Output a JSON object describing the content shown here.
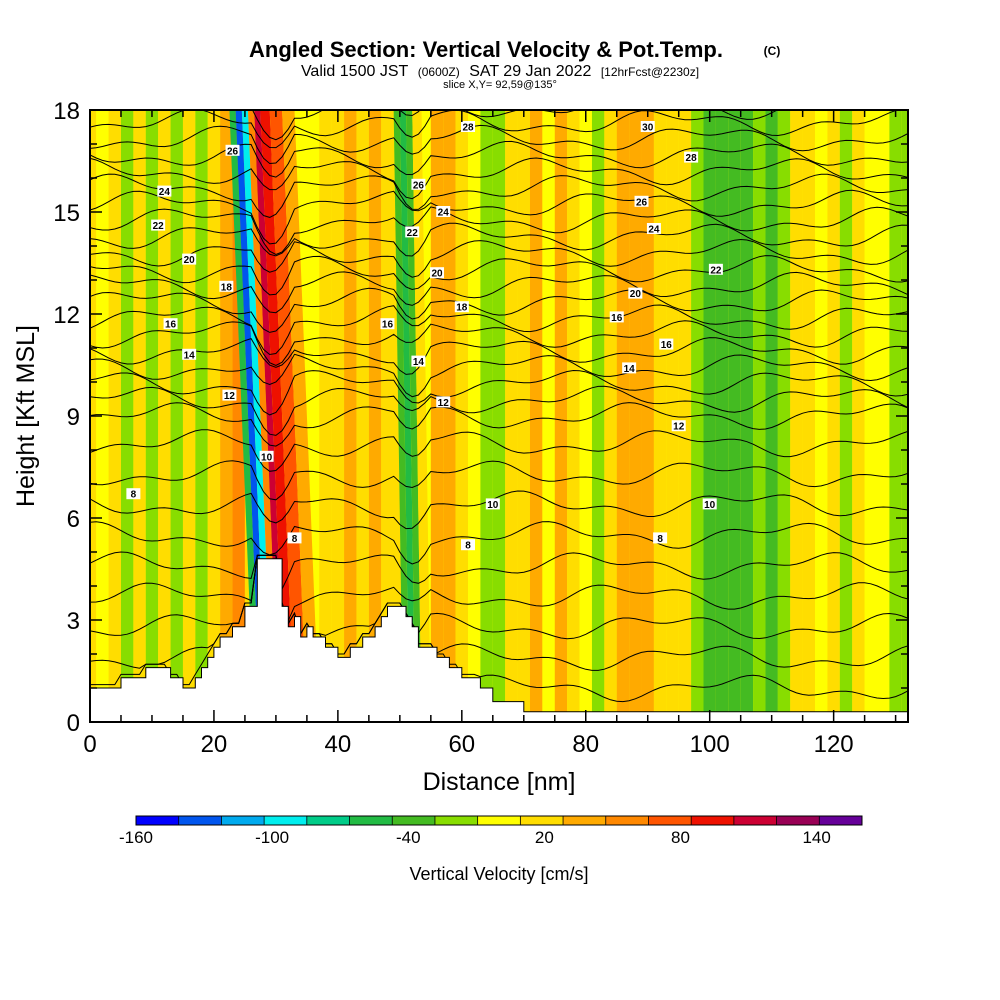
{
  "chart_data": {
    "type": "heatmap",
    "title": "Angled Section: Vertical Velocity & Pot.Temp.",
    "title_unit": "(C)",
    "subtitle": {
      "prefix": "Valid 1500 JST",
      "utc": "(0600Z)",
      "date": "SAT 29 Jan 2022",
      "fcst": "[12hrFcst@2230z]"
    },
    "slice_label": "slice X,Y= 92,59@135°",
    "xlabel": "Distance [nm]",
    "ylabel": "Height [Kft MSL]",
    "xlim": [
      0,
      132
    ],
    "ylim": [
      0,
      18
    ],
    "x_ticks": [
      0,
      20,
      40,
      60,
      80,
      100,
      120
    ],
    "y_ticks": [
      0,
      3,
      6,
      9,
      12,
      15,
      18
    ],
    "colorbar": {
      "label": "Vertical Velocity [cm/s]",
      "range": [
        -160,
        160
      ],
      "bins": 17,
      "tick_labels": [
        {
          "value": -160,
          "text": "-160"
        },
        {
          "value": -100,
          "text": "-100"
        },
        {
          "value": -40,
          "text": "-40"
        },
        {
          "value": 20,
          "text": "20"
        },
        {
          "value": 80,
          "text": "80"
        },
        {
          "value": 140,
          "text": "140"
        }
      ],
      "colors": [
        "#0000ff",
        "#0055ee",
        "#00aaee",
        "#00eeee",
        "#00cc88",
        "#22bb44",
        "#44bb22",
        "#88dd00",
        "#ffff00",
        "#ffdd00",
        "#ffaa00",
        "#ff8800",
        "#ff5500",
        "#ee1100",
        "#cc0033",
        "#990055",
        "#660099"
      ]
    },
    "terrain": [
      [
        0,
        1
      ],
      [
        5,
        1
      ],
      [
        5,
        1.3
      ],
      [
        9,
        1.3
      ],
      [
        9,
        1.6
      ],
      [
        13,
        1.6
      ],
      [
        13,
        1.3
      ],
      [
        15,
        1.3
      ],
      [
        15,
        1
      ],
      [
        17,
        1
      ],
      [
        17,
        1.3
      ],
      [
        18,
        1.3
      ],
      [
        18,
        1.6
      ],
      [
        19,
        1.6
      ],
      [
        19,
        1.9
      ],
      [
        20,
        1.9
      ],
      [
        20,
        2.2
      ],
      [
        21,
        2.2
      ],
      [
        21,
        2.5
      ],
      [
        23,
        2.5
      ],
      [
        23,
        2.8
      ],
      [
        25,
        2.8
      ],
      [
        25,
        3.4
      ],
      [
        27,
        3.4
      ],
      [
        27,
        4.8
      ],
      [
        31,
        4.8
      ],
      [
        31,
        3.4
      ],
      [
        32,
        3.4
      ],
      [
        32,
        2.8
      ],
      [
        33,
        2.8
      ],
      [
        33,
        3.1
      ],
      [
        34,
        3.1
      ],
      [
        34,
        2.5
      ],
      [
        35,
        2.5
      ],
      [
        35,
        2.8
      ],
      [
        36,
        2.8
      ],
      [
        36,
        2.5
      ],
      [
        38,
        2.5
      ],
      [
        38,
        2.2
      ],
      [
        40,
        2.2
      ],
      [
        40,
        1.9
      ],
      [
        42,
        1.9
      ],
      [
        42,
        2.2
      ],
      [
        44,
        2.2
      ],
      [
        44,
        2.5
      ],
      [
        46,
        2.5
      ],
      [
        46,
        2.8
      ],
      [
        47,
        2.8
      ],
      [
        47,
        3.1
      ],
      [
        48,
        3.1
      ],
      [
        48,
        3.4
      ],
      [
        51,
        3.4
      ],
      [
        51,
        3.1
      ],
      [
        52,
        3.1
      ],
      [
        52,
        2.8
      ],
      [
        53,
        2.8
      ],
      [
        53,
        2.2
      ],
      [
        56,
        2.2
      ],
      [
        56,
        1.9
      ],
      [
        58,
        1.9
      ],
      [
        58,
        1.6
      ],
      [
        60,
        1.6
      ],
      [
        60,
        1.3
      ],
      [
        63,
        1.3
      ],
      [
        63,
        1
      ],
      [
        65,
        1
      ],
      [
        65,
        0.6
      ],
      [
        70,
        0.6
      ],
      [
        70,
        0.3
      ],
      [
        132,
        0.3
      ]
    ],
    "velocity_field": [
      {
        "x": 0,
        "v": 20
      },
      {
        "x": 2,
        "v": 0
      },
      {
        "x": 4,
        "v": 10
      },
      {
        "x": 6,
        "v": -10
      },
      {
        "x": 8,
        "v": 20
      },
      {
        "x": 10,
        "v": -25
      },
      {
        "x": 12,
        "v": 25
      },
      {
        "x": 14,
        "v": -15
      },
      {
        "x": 16,
        "v": 10
      },
      {
        "x": 18,
        "v": -10
      },
      {
        "x": 20,
        "v": 20
      },
      {
        "x": 22,
        "v": 45
      },
      {
        "x": 24,
        "v": 55
      },
      {
        "x": 26,
        "v": 20
      },
      {
        "x": 27,
        "v": -60
      },
      {
        "x": 28,
        "v": -130
      },
      {
        "x": 29,
        "v": -90
      },
      {
        "x": 30,
        "v": 60
      },
      {
        "x": 31,
        "v": 110
      },
      {
        "x": 32,
        "v": 95
      },
      {
        "x": 34,
        "v": 70
      },
      {
        "x": 36,
        "v": 40
      },
      {
        "x": 38,
        "v": 20
      },
      {
        "x": 40,
        "v": 10
      },
      {
        "x": 42,
        "v": 30
      },
      {
        "x": 44,
        "v": 15
      },
      {
        "x": 46,
        "v": 35
      },
      {
        "x": 48,
        "v": 10
      },
      {
        "x": 50,
        "v": 25
      },
      {
        "x": 51,
        "v": -30
      },
      {
        "x": 52,
        "v": -60
      },
      {
        "x": 53,
        "v": -30
      },
      {
        "x": 54,
        "v": 20
      },
      {
        "x": 56,
        "v": 30
      },
      {
        "x": 58,
        "v": 45
      },
      {
        "x": 60,
        "v": 20
      },
      {
        "x": 62,
        "v": 0
      },
      {
        "x": 64,
        "v": -20
      },
      {
        "x": 66,
        "v": -10
      },
      {
        "x": 68,
        "v": 10
      },
      {
        "x": 70,
        "v": 20
      },
      {
        "x": 72,
        "v": 30
      },
      {
        "x": 74,
        "v": 5
      },
      {
        "x": 76,
        "v": 35
      },
      {
        "x": 78,
        "v": 15
      },
      {
        "x": 80,
        "v": 0
      },
      {
        "x": 82,
        "v": -10
      },
      {
        "x": 84,
        "v": 25
      },
      {
        "x": 86,
        "v": 40
      },
      {
        "x": 88,
        "v": 30
      },
      {
        "x": 90,
        "v": 45
      },
      {
        "x": 92,
        "v": 25
      },
      {
        "x": 94,
        "v": 10
      },
      {
        "x": 96,
        "v": 15
      },
      {
        "x": 98,
        "v": -10
      },
      {
        "x": 100,
        "v": -35
      },
      {
        "x": 102,
        "v": -45
      },
      {
        "x": 104,
        "v": -40
      },
      {
        "x": 106,
        "v": -35
      },
      {
        "x": 108,
        "v": -20
      },
      {
        "x": 110,
        "v": -30
      },
      {
        "x": 112,
        "v": -10
      },
      {
        "x": 114,
        "v": 10
      },
      {
        "x": 116,
        "v": 20
      },
      {
        "x": 118,
        "v": 0
      },
      {
        "x": 120,
        "v": 10
      },
      {
        "x": 122,
        "v": -10
      },
      {
        "x": 124,
        "v": 15
      },
      {
        "x": 126,
        "v": -5
      },
      {
        "x": 128,
        "v": 0
      },
      {
        "x": 130,
        "v": -10
      },
      {
        "x": 132,
        "v": -15
      }
    ],
    "theta_contours": {
      "step": 1,
      "first": 3,
      "last": 31,
      "labels": [
        {
          "x": 7,
          "y": 6.7,
          "text": "8"
        },
        {
          "x": 28.5,
          "y": 7.8,
          "text": "10"
        },
        {
          "x": 22.5,
          "y": 9.6,
          "text": "12"
        },
        {
          "x": 16,
          "y": 10.8,
          "text": "14"
        },
        {
          "x": 13,
          "y": 11.7,
          "text": "16"
        },
        {
          "x": 22,
          "y": 12.8,
          "text": "18"
        },
        {
          "x": 16,
          "y": 13.6,
          "text": "20"
        },
        {
          "x": 11,
          "y": 14.6,
          "text": "22"
        },
        {
          "x": 12,
          "y": 15.6,
          "text": "24"
        },
        {
          "x": 23,
          "y": 16.8,
          "text": "26"
        },
        {
          "x": 33,
          "y": 5.4,
          "text": "8"
        },
        {
          "x": 61,
          "y": 5.2,
          "text": "8"
        },
        {
          "x": 65,
          "y": 6.4,
          "text": "10"
        },
        {
          "x": 57,
          "y": 9.4,
          "text": "12"
        },
        {
          "x": 53,
          "y": 10.6,
          "text": "14"
        },
        {
          "x": 48,
          "y": 11.7,
          "text": "16"
        },
        {
          "x": 60,
          "y": 12.2,
          "text": "18"
        },
        {
          "x": 56,
          "y": 13.2,
          "text": "20"
        },
        {
          "x": 52,
          "y": 14.4,
          "text": "22"
        },
        {
          "x": 57,
          "y": 15.0,
          "text": "24"
        },
        {
          "x": 53,
          "y": 15.8,
          "text": "26"
        },
        {
          "x": 61,
          "y": 17.5,
          "text": "28"
        },
        {
          "x": 92,
          "y": 5.4,
          "text": "8"
        },
        {
          "x": 100,
          "y": 6.4,
          "text": "10"
        },
        {
          "x": 95,
          "y": 8.7,
          "text": "12"
        },
        {
          "x": 87,
          "y": 10.4,
          "text": "14"
        },
        {
          "x": 93,
          "y": 11.1,
          "text": "16"
        },
        {
          "x": 85,
          "y": 11.9,
          "text": "16"
        },
        {
          "x": 88,
          "y": 12.6,
          "text": "20"
        },
        {
          "x": 101,
          "y": 13.3,
          "text": "22"
        },
        {
          "x": 91,
          "y": 14.5,
          "text": "24"
        },
        {
          "x": 89,
          "y": 15.3,
          "text": "26"
        },
        {
          "x": 97,
          "y": 16.6,
          "text": "28"
        },
        {
          "x": 90,
          "y": 17.5,
          "text": "30"
        }
      ]
    }
  }
}
